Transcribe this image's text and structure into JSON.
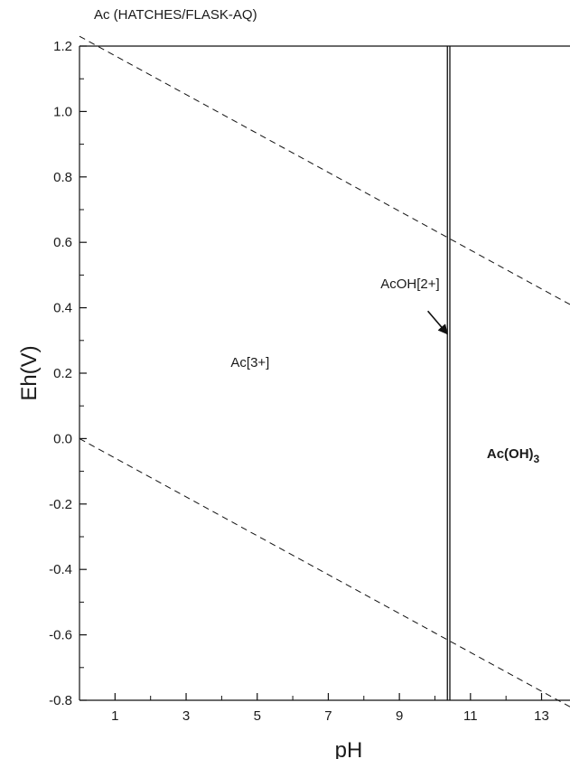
{
  "title": "Ac (HATCHES/FLASK-AQ)",
  "chart_data": {
    "type": "line",
    "title": "Ac (HATCHES/FLASK-AQ)",
    "xlabel": "pH",
    "ylabel": "Eh(V)",
    "xlim": [
      0,
      13.8
    ],
    "ylim": [
      -0.8,
      1.2
    ],
    "x_ticks": [
      1,
      3,
      5,
      7,
      9,
      11,
      13
    ],
    "y_ticks": [
      1.2,
      1.0,
      0.8,
      0.6,
      0.4,
      0.2,
      0.0,
      -0.2,
      -0.4,
      -0.6,
      -0.8
    ],
    "x_tick_labels": [
      "1",
      "3",
      "5",
      "7",
      "9",
      "11",
      "13"
    ],
    "y_tick_labels": [
      "1.2",
      "1.0",
      "0.8",
      "0.6",
      "0.4",
      "0.2",
      "0.0",
      "-0.2",
      "-0.4",
      "-0.6",
      "-0.8"
    ],
    "grid": false,
    "series": [
      {
        "style": "dashed",
        "x": [
          0,
          13.8
        ],
        "y": [
          1.23,
          0.41
        ]
      },
      {
        "style": "dashed",
        "x": [
          0,
          13.8
        ],
        "y": [
          0.0,
          -0.82
        ]
      },
      {
        "style": "double-vertical",
        "x": [
          10.35,
          10.35
        ],
        "y": [
          -0.8,
          1.2
        ]
      },
      {
        "style": "double-vertical",
        "x": [
          10.42,
          10.42
        ],
        "y": [
          -0.8,
          1.2
        ]
      }
    ],
    "region_labels": [
      {
        "text": "Ac[3+]",
        "x": 4.8,
        "y": 0.22,
        "bold": false
      },
      {
        "text": "AcOH[2+]",
        "x": 9.3,
        "y": 0.46,
        "bold": false
      },
      {
        "text": "Ac(OH)",
        "subscript": "3",
        "x": 12.2,
        "y": -0.06,
        "bold": true
      }
    ],
    "annotations": [
      {
        "type": "arrow",
        "from": [
          9.8,
          0.39
        ],
        "to": [
          10.35,
          0.32
        ]
      }
    ]
  }
}
